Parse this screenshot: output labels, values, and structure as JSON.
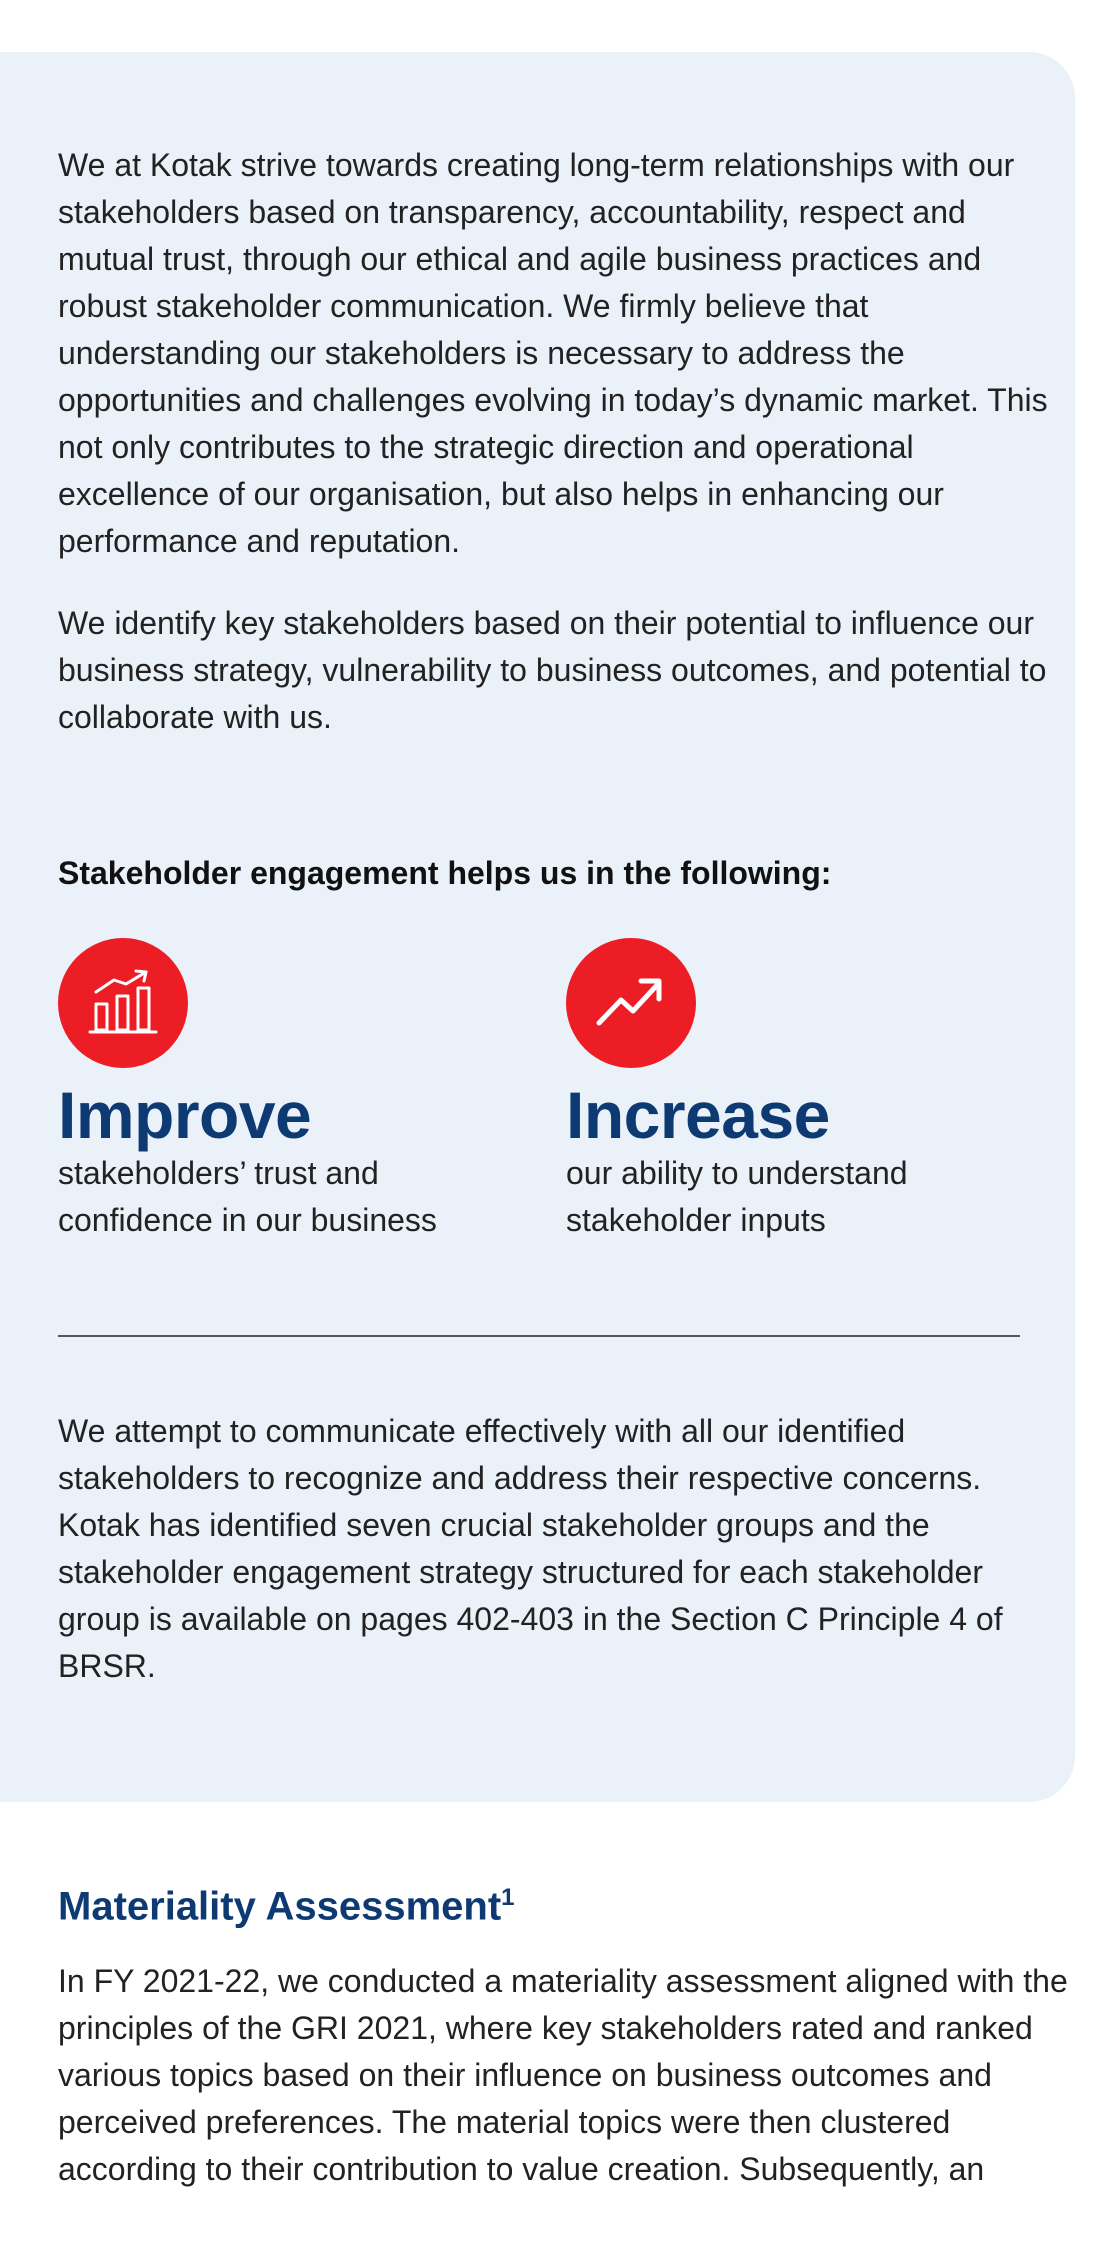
{
  "intro": {
    "paragraph1": "We at Kotak strive towards creating long-term relationships with our stakeholders based on transparency, accountability, respect and mutual trust, through our ethical and agile business practices and robust stakeholder communication. We firmly believe that understanding our stakeholders is necessary to address the opportunities and challenges evolving in today’s dynamic market. This not only contributes to the strategic direction and operational excellence of our organisation, but also helps in enhancing our performance and reputation.",
    "paragraph2": "We identify key stakeholders based on their potential to influence our business strategy, vulnerability to business outcomes, and potential to collaborate with us."
  },
  "engagement": {
    "heading": "Stakeholder engagement helps us in the following:",
    "items": [
      {
        "icon": "bar-chart-growth-icon",
        "title": "Improve",
        "text": "stakeholders’ trust and confidence in our business"
      },
      {
        "icon": "trend-up-arrow-icon",
        "title": "Increase",
        "text": "our ability to understand stakeholder inputs"
      }
    ],
    "paragraph": "We attempt to communicate effectively with all our identified stakeholders to recognize and address their respective concerns. Kotak has identified seven crucial stakeholder groups and the stakeholder engagement strategy structured for each stakeholder group is available on pages 402-403 in the Section C Principle 4 of BRSR."
  },
  "materiality": {
    "title": "Materiality Assessment",
    "footnote_marker": "1",
    "paragraph": "In FY 2021-22, we conducted a materiality assessment aligned with the principles of the GRI 2021, where key stakeholders rated and ranked various topics based on their influence on business outcomes and perceived preferences. The material topics were then clustered according to their contribution to value creation. Subsequently, an"
  },
  "colors": {
    "panel_background": "#eaf1f8",
    "accent_red": "#ec1d25",
    "heading_blue": "#0e3a74"
  }
}
